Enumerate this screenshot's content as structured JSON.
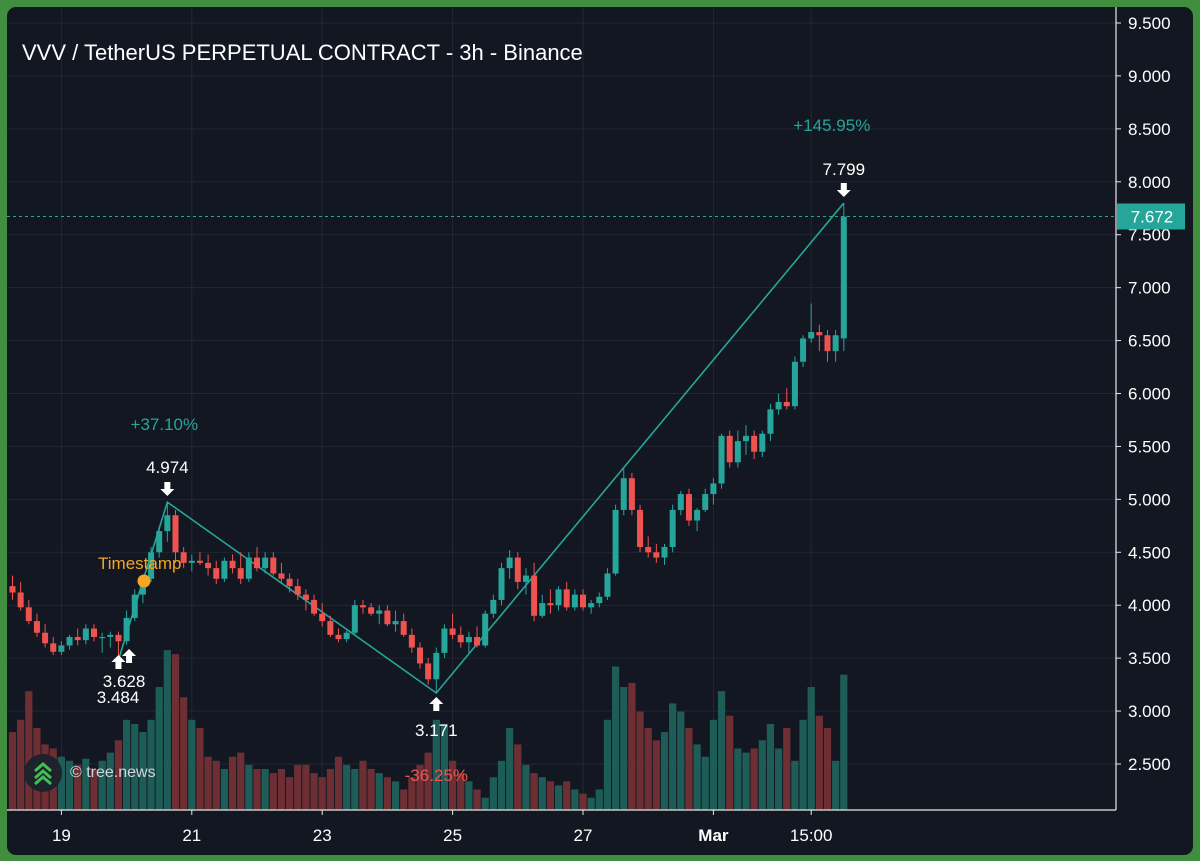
{
  "header": {
    "title": "VVV / TetherUS PERPETUAL CONTRACT - 3h - Binance"
  },
  "watermark": {
    "text": "© tree.news"
  },
  "colors": {
    "up": "#26a69a",
    "down": "#ef5350",
    "background": "#131722",
    "grid": "#232734",
    "annotation_orange": "#f5a623",
    "frame": "#3f8f3e"
  },
  "chart_data": {
    "type": "candlestick",
    "title": "VVV / TetherUS PERPETUAL CONTRACT - 3h - Binance",
    "timeframe": "3h",
    "ylim": [
      2.0,
      9.7
    ],
    "y_ticks": [
      "2.500",
      "3.000",
      "3.500",
      "4.000",
      "4.500",
      "5.000",
      "5.500",
      "6.000",
      "6.500",
      "7.000",
      "7.500",
      "8.000",
      "8.500",
      "9.000",
      "9.500"
    ],
    "x_ticks": [
      {
        "label": "19",
        "index": 6,
        "bold": false
      },
      {
        "label": "21",
        "index": 22,
        "bold": false
      },
      {
        "label": "23",
        "index": 38,
        "bold": false
      },
      {
        "label": "25",
        "index": 54,
        "bold": false
      },
      {
        "label": "27",
        "index": 70,
        "bold": false
      },
      {
        "label": "Mar",
        "index": 86,
        "bold": true
      },
      {
        "label": "15:00",
        "index": 98,
        "bold": false
      }
    ],
    "last_price": "7.672",
    "candles": [
      [
        4.18,
        4.28,
        4.05,
        4.12
      ],
      [
        4.12,
        4.22,
        3.95,
        3.98
      ],
      [
        3.98,
        4.05,
        3.82,
        3.85
      ],
      [
        3.85,
        3.92,
        3.7,
        3.74
      ],
      [
        3.74,
        3.82,
        3.6,
        3.64
      ],
      [
        3.64,
        3.7,
        3.53,
        3.56
      ],
      [
        3.56,
        3.66,
        3.53,
        3.62
      ],
      [
        3.62,
        3.72,
        3.58,
        3.7
      ],
      [
        3.7,
        3.78,
        3.62,
        3.67
      ],
      [
        3.67,
        3.82,
        3.63,
        3.78
      ],
      [
        3.78,
        3.82,
        3.66,
        3.7
      ],
      [
        3.7,
        3.74,
        3.55,
        3.7
      ],
      [
        3.7,
        3.75,
        3.6,
        3.72
      ],
      [
        3.72,
        3.75,
        3.484,
        3.66
      ],
      [
        3.66,
        3.95,
        3.628,
        3.88
      ],
      [
        3.88,
        4.15,
        3.85,
        4.1
      ],
      [
        4.1,
        4.28,
        4.02,
        4.25
      ],
      [
        4.25,
        4.55,
        4.22,
        4.5
      ],
      [
        4.5,
        4.75,
        4.45,
        4.7
      ],
      [
        4.7,
        4.974,
        4.6,
        4.85
      ],
      [
        4.85,
        4.9,
        4.4,
        4.5
      ],
      [
        4.5,
        4.55,
        4.35,
        4.4
      ],
      [
        4.4,
        4.48,
        4.32,
        4.42
      ],
      [
        4.42,
        4.5,
        4.38,
        4.4
      ],
      [
        4.4,
        4.48,
        4.28,
        4.35
      ],
      [
        4.35,
        4.42,
        4.2,
        4.25
      ],
      [
        4.25,
        4.45,
        4.22,
        4.42
      ],
      [
        4.42,
        4.48,
        4.3,
        4.35
      ],
      [
        4.35,
        4.5,
        4.2,
        4.25
      ],
      [
        4.25,
        4.5,
        4.22,
        4.45
      ],
      [
        4.45,
        4.55,
        4.32,
        4.35
      ],
      [
        4.35,
        4.5,
        4.3,
        4.45
      ],
      [
        4.45,
        4.5,
        4.28,
        4.3
      ],
      [
        4.3,
        4.4,
        4.2,
        4.25
      ],
      [
        4.25,
        4.3,
        4.12,
        4.18
      ],
      [
        4.18,
        4.25,
        4.05,
        4.1
      ],
      [
        4.1,
        4.15,
        3.95,
        4.05
      ],
      [
        4.05,
        4.1,
        3.9,
        3.92
      ],
      [
        3.92,
        4.02,
        3.8,
        3.85
      ],
      [
        3.85,
        3.9,
        3.7,
        3.72
      ],
      [
        3.72,
        3.78,
        3.65,
        3.68
      ],
      [
        3.68,
        3.76,
        3.65,
        3.74
      ],
      [
        3.74,
        4.05,
        3.72,
        4.0
      ],
      [
        4.0,
        4.05,
        3.92,
        3.98
      ],
      [
        3.98,
        4.02,
        3.9,
        3.92
      ],
      [
        3.92,
        4.0,
        3.82,
        3.95
      ],
      [
        3.95,
        4.0,
        3.8,
        3.82
      ],
      [
        3.82,
        3.95,
        3.75,
        3.85
      ],
      [
        3.85,
        3.92,
        3.7,
        3.72
      ],
      [
        3.72,
        3.78,
        3.55,
        3.6
      ],
      [
        3.6,
        3.65,
        3.4,
        3.45
      ],
      [
        3.45,
        3.5,
        3.25,
        3.3
      ],
      [
        3.3,
        3.6,
        3.171,
        3.55
      ],
      [
        3.55,
        3.82,
        3.5,
        3.78
      ],
      [
        3.78,
        3.92,
        3.68,
        3.72
      ],
      [
        3.72,
        3.8,
        3.6,
        3.65
      ],
      [
        3.65,
        3.75,
        3.55,
        3.7
      ],
      [
        3.7,
        3.8,
        3.6,
        3.62
      ],
      [
        3.62,
        3.95,
        3.6,
        3.92
      ],
      [
        3.92,
        4.1,
        3.88,
        4.05
      ],
      [
        4.05,
        4.4,
        4.0,
        4.35
      ],
      [
        4.35,
        4.52,
        4.25,
        4.45
      ],
      [
        4.45,
        4.5,
        4.15,
        4.22
      ],
      [
        4.22,
        4.35,
        4.1,
        4.28
      ],
      [
        4.28,
        4.4,
        3.85,
        3.9
      ],
      [
        3.9,
        4.1,
        3.88,
        4.02
      ],
      [
        4.02,
        4.15,
        3.92,
        4.0
      ],
      [
        4.0,
        4.18,
        3.95,
        4.15
      ],
      [
        4.15,
        4.22,
        3.95,
        3.98
      ],
      [
        3.98,
        4.15,
        3.95,
        4.1
      ],
      [
        4.1,
        4.15,
        3.95,
        3.98
      ],
      [
        3.98,
        4.05,
        3.92,
        4.02
      ],
      [
        4.02,
        4.12,
        3.98,
        4.08
      ],
      [
        4.08,
        4.35,
        4.05,
        4.3
      ],
      [
        4.3,
        4.95,
        4.28,
        4.9
      ],
      [
        4.9,
        5.3,
        4.85,
        5.2
      ],
      [
        5.2,
        5.25,
        4.85,
        4.9
      ],
      [
        4.9,
        4.95,
        4.5,
        4.55
      ],
      [
        4.55,
        4.65,
        4.45,
        4.5
      ],
      [
        4.5,
        4.58,
        4.4,
        4.45
      ],
      [
        4.45,
        4.58,
        4.38,
        4.55
      ],
      [
        4.55,
        4.95,
        4.5,
        4.9
      ],
      [
        4.9,
        5.08,
        4.85,
        5.05
      ],
      [
        5.05,
        5.1,
        4.75,
        4.8
      ],
      [
        4.8,
        4.92,
        4.7,
        4.9
      ],
      [
        4.9,
        5.1,
        4.88,
        5.05
      ],
      [
        5.05,
        5.2,
        4.95,
        5.15
      ],
      [
        5.15,
        5.62,
        5.1,
        5.6
      ],
      [
        5.6,
        5.65,
        5.3,
        5.35
      ],
      [
        5.35,
        5.65,
        5.3,
        5.55
      ],
      [
        5.55,
        5.7,
        5.42,
        5.6
      ],
      [
        5.6,
        5.65,
        5.38,
        5.45
      ],
      [
        5.45,
        5.65,
        5.4,
        5.62
      ],
      [
        5.62,
        5.9,
        5.55,
        5.85
      ],
      [
        5.85,
        6.0,
        5.8,
        5.92
      ],
      [
        5.92,
        6.05,
        5.85,
        5.88
      ],
      [
        5.88,
        6.35,
        5.85,
        6.3
      ],
      [
        6.3,
        6.55,
        6.25,
        6.52
      ],
      [
        6.52,
        6.85,
        6.48,
        6.58
      ],
      [
        6.58,
        6.65,
        6.4,
        6.55
      ],
      [
        6.55,
        6.6,
        6.3,
        6.4
      ],
      [
        6.4,
        6.6,
        6.3,
        6.55
      ],
      [
        6.52,
        7.799,
        6.4,
        7.672
      ]
    ],
    "volume": [
      0.38,
      0.44,
      0.58,
      0.4,
      0.32,
      0.3,
      0.26,
      0.24,
      0.22,
      0.25,
      0.2,
      0.24,
      0.28,
      0.34,
      0.44,
      0.42,
      0.38,
      0.44,
      0.6,
      0.78,
      0.76,
      0.55,
      0.44,
      0.4,
      0.26,
      0.24,
      0.2,
      0.26,
      0.28,
      0.22,
      0.2,
      0.2,
      0.18,
      0.2,
      0.16,
      0.22,
      0.22,
      0.18,
      0.16,
      0.2,
      0.26,
      0.22,
      0.2,
      0.24,
      0.2,
      0.18,
      0.16,
      0.14,
      0.1,
      0.16,
      0.22,
      0.28,
      0.44,
      0.42,
      0.24,
      0.18,
      0.14,
      0.1,
      0.06,
      0.16,
      0.24,
      0.4,
      0.32,
      0.22,
      0.18,
      0.16,
      0.14,
      0.12,
      0.14,
      0.1,
      0.08,
      0.06,
      0.1,
      0.44,
      0.7,
      0.6,
      0.62,
      0.48,
      0.4,
      0.34,
      0.38,
      0.52,
      0.48,
      0.4,
      0.32,
      0.26,
      0.44,
      0.58,
      0.46,
      0.3,
      0.28,
      0.3,
      0.34,
      0.42,
      0.3,
      0.4,
      0.24,
      0.44,
      0.6,
      0.46,
      0.4,
      0.24,
      0.66
    ],
    "swing_lines": [
      [
        13,
        3.484
      ],
      [
        19,
        4.974
      ],
      [
        52,
        3.171
      ],
      [
        102,
        7.799
      ]
    ],
    "labels": {
      "low1": "3.484",
      "low2": "3.628",
      "high1": "4.974",
      "low3": "3.171",
      "high2": "7.799",
      "pct_up1": "+37.10%",
      "pct_down": "-36.25%",
      "pct_up2": "+145.95%",
      "timestamp": "Timestamp"
    }
  }
}
